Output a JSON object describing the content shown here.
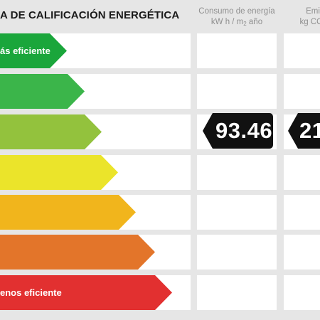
{
  "title": "A DE CALIFICACIÓN ENERGÉTICA",
  "headers": {
    "consumo": {
      "line1": "Consumo de energía",
      "line2_a": "kW h / m",
      "line2_sub": "2",
      "line2_b": " año"
    },
    "emisiones": {
      "line1": "Emi",
      "line2_a": "kg CO",
      "line2_sub": "2"
    }
  },
  "ratings": [
    {
      "label": "ás eficiente",
      "color": "#1aa63b"
    },
    {
      "label": "",
      "color": "#3bb54a"
    },
    {
      "label": "",
      "color": "#93c23d"
    },
    {
      "label": "",
      "color": "#ebe42a"
    },
    {
      "label": "",
      "color": "#f1b51c"
    },
    {
      "label": "",
      "color": "#e3752a"
    },
    {
      "label": "enos eficiente",
      "color": "#e23030"
    }
  ],
  "current": {
    "consumo_value": "93.46",
    "emisiones_value": "21"
  }
}
